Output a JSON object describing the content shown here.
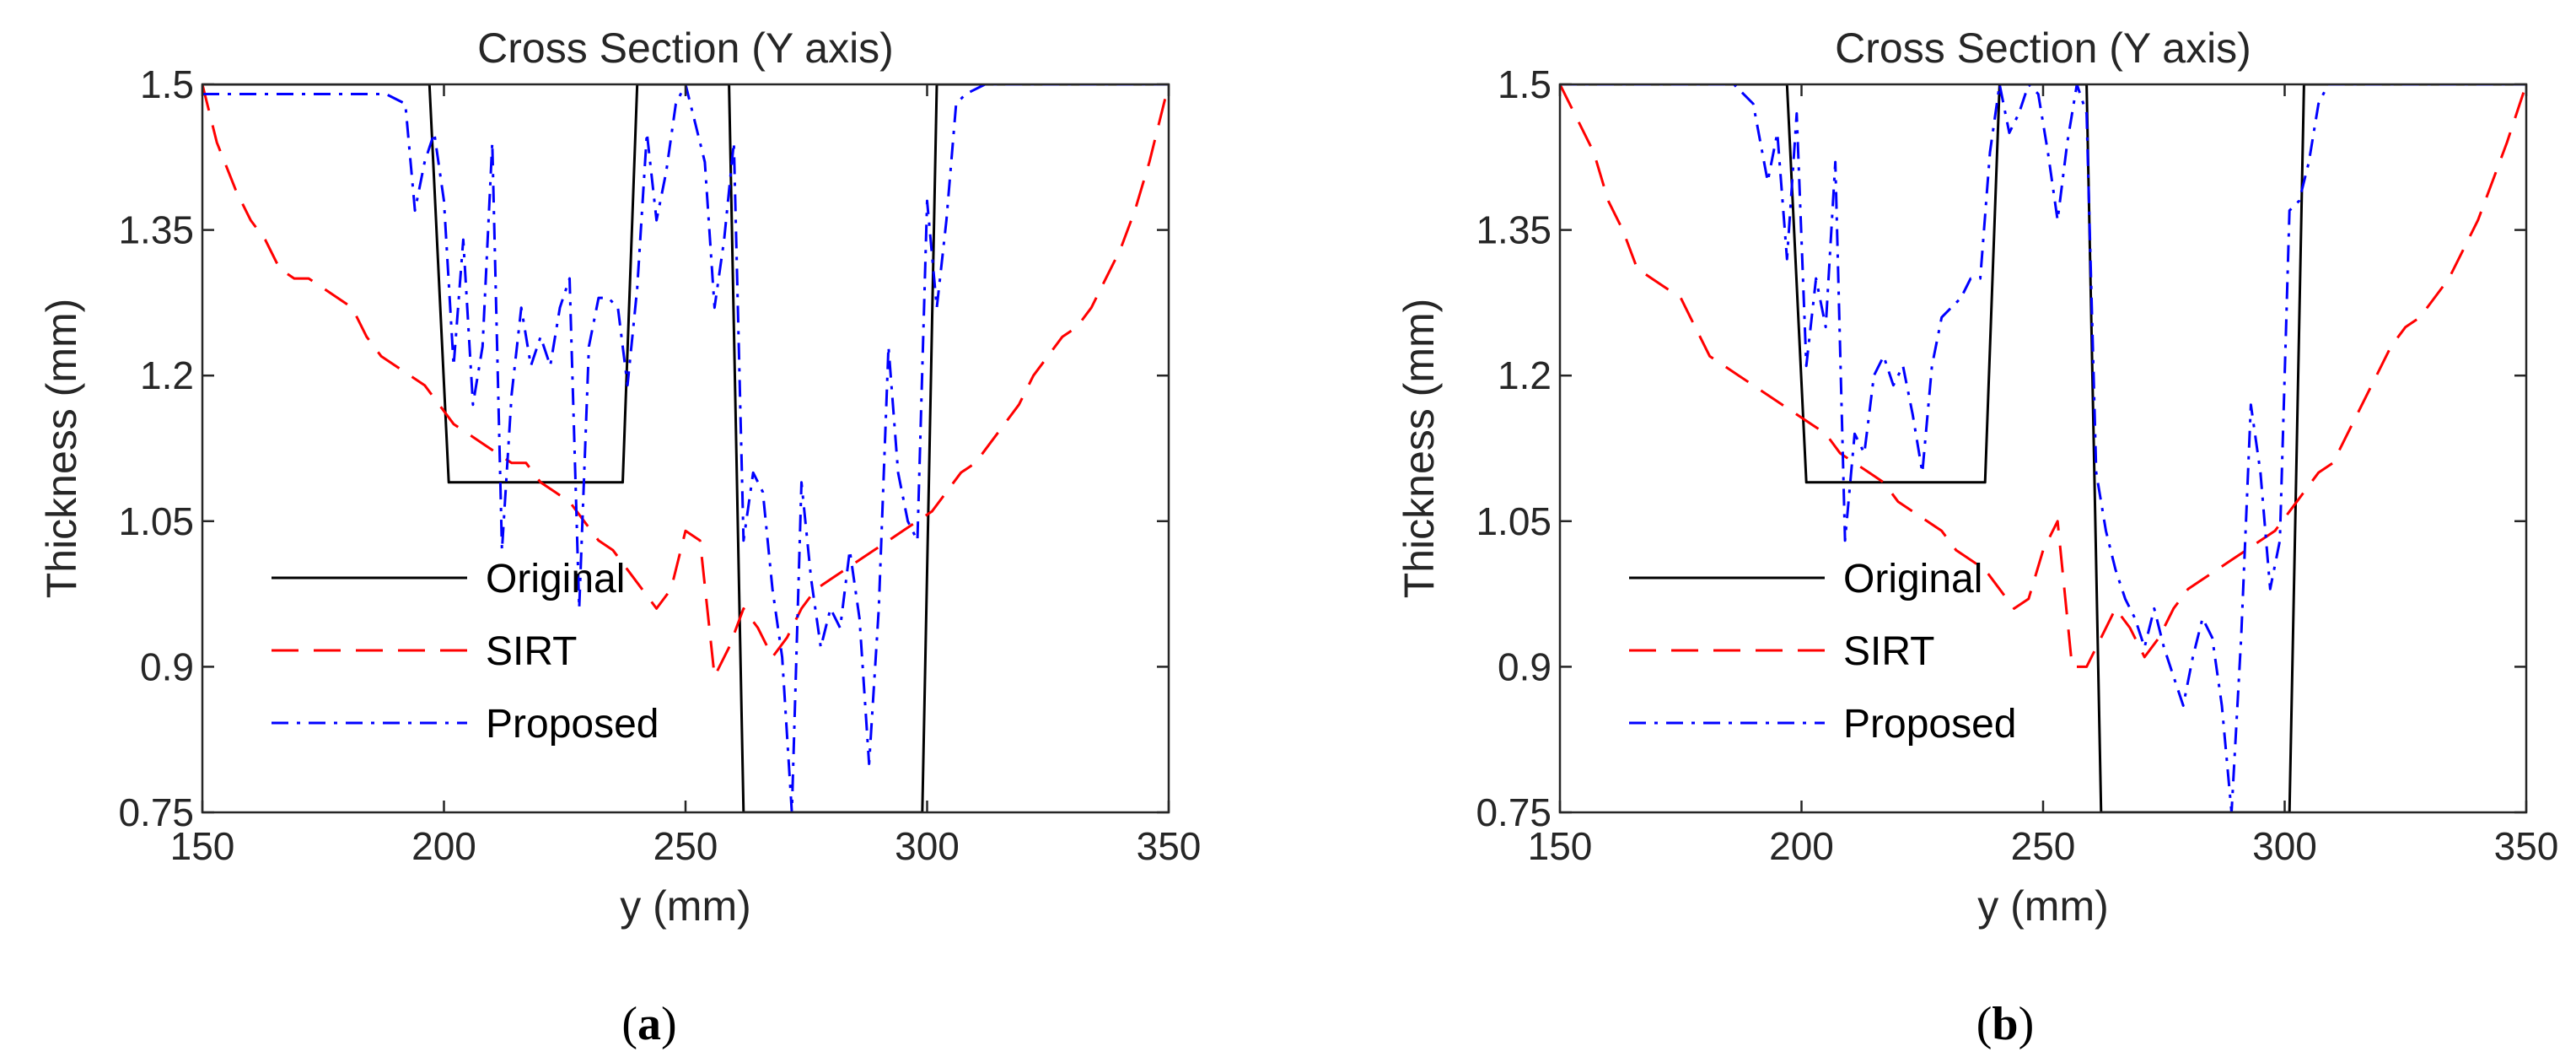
{
  "chart_data": [
    {
      "type": "line",
      "panel": "a",
      "caption_open": "(",
      "caption_letter": "a",
      "caption_close": ")",
      "title": "Cross Section (Y axis)",
      "xlabel": "y (mm)",
      "ylabel": "Thickness (mm)",
      "xlim": [
        150,
        350
      ],
      "ylim": [
        0.75,
        1.5
      ],
      "xticks": [
        "150",
        "200",
        "250",
        "300",
        "350"
      ],
      "yticks": [
        "0.75",
        "0.9",
        "1.05",
        "1.2",
        "1.35",
        "1.5"
      ],
      "legend_position": "lower-left",
      "series": [
        {
          "name": "Original",
          "style": "solid",
          "color": "#000000",
          "x": [
            150,
            197,
            201,
            237,
            240,
            259,
            262,
            299,
            302,
            350
          ],
          "y": [
            1.5,
            1.5,
            1.09,
            1.09,
            1.5,
            1.5,
            0.75,
            0.75,
            1.5,
            1.5
          ]
        },
        {
          "name": "SIRT",
          "style": "dashed",
          "color": "#ff0000",
          "x": [
            150,
            153,
            157,
            160,
            163,
            166,
            169,
            172,
            175,
            178,
            181,
            184,
            187,
            190,
            193,
            196,
            199,
            202,
            205,
            208,
            211,
            214,
            217,
            220,
            223,
            226,
            229,
            232,
            235,
            238,
            241,
            244,
            247,
            250,
            253,
            256,
            259,
            262,
            265,
            268,
            271,
            274,
            277,
            280,
            283,
            286,
            289,
            292,
            295,
            298,
            301,
            304,
            307,
            310,
            313,
            316,
            319,
            322,
            325,
            328,
            331,
            334,
            337,
            340,
            343,
            346,
            350
          ],
          "y": [
            1.5,
            1.44,
            1.39,
            1.36,
            1.34,
            1.31,
            1.3,
            1.3,
            1.29,
            1.28,
            1.27,
            1.24,
            1.22,
            1.21,
            1.2,
            1.19,
            1.17,
            1.15,
            1.14,
            1.13,
            1.12,
            1.11,
            1.11,
            1.09,
            1.08,
            1.07,
            1.05,
            1.03,
            1.02,
            1.0,
            0.98,
            0.96,
            0.98,
            1.04,
            1.03,
            0.89,
            0.92,
            0.96,
            0.94,
            0.91,
            0.93,
            0.96,
            0.98,
            0.99,
            1.0,
            1.01,
            1.02,
            1.03,
            1.04,
            1.05,
            1.06,
            1.08,
            1.1,
            1.11,
            1.13,
            1.15,
            1.17,
            1.2,
            1.22,
            1.24,
            1.25,
            1.27,
            1.3,
            1.33,
            1.37,
            1.42,
            1.5
          ]
        },
        {
          "name": "Proposed",
          "style": "dashdot",
          "color": "#0000ff",
          "x": [
            150,
            160,
            170,
            180,
            188,
            192,
            194,
            196,
            198,
            200,
            202,
            204,
            206,
            208,
            210,
            212,
            214,
            216,
            218,
            220,
            222,
            224,
            226,
            228,
            230,
            232,
            234,
            236,
            238,
            240,
            242,
            244,
            246,
            248,
            250,
            252,
            254,
            256,
            258,
            260,
            262,
            264,
            266,
            268,
            270,
            272,
            274,
            276,
            278,
            280,
            282,
            284,
            286,
            288,
            290,
            292,
            294,
            296,
            298,
            300,
            302,
            304,
            306,
            308,
            312,
            320,
            330,
            340,
            350
          ],
          "y": [
            1.49,
            1.49,
            1.49,
            1.49,
            1.49,
            1.48,
            1.37,
            1.42,
            1.45,
            1.38,
            1.21,
            1.34,
            1.17,
            1.23,
            1.44,
            1.02,
            1.18,
            1.27,
            1.21,
            1.24,
            1.21,
            1.27,
            1.3,
            0.96,
            1.23,
            1.28,
            1.28,
            1.27,
            1.19,
            1.29,
            1.45,
            1.36,
            1.41,
            1.48,
            1.5,
            1.46,
            1.42,
            1.27,
            1.34,
            1.44,
            1.03,
            1.1,
            1.08,
            0.98,
            0.91,
            0.75,
            1.09,
            0.99,
            0.92,
            0.96,
            0.94,
            1.02,
            0.95,
            0.8,
            0.96,
            1.23,
            1.1,
            1.05,
            1.03,
            1.38,
            1.27,
            1.36,
            1.48,
            1.49,
            1.5,
            1.5,
            1.5,
            1.5,
            1.5
          ]
        }
      ]
    },
    {
      "type": "line",
      "panel": "b",
      "caption_open": "(",
      "caption_letter": "b",
      "caption_close": ")",
      "title": "Cross Section (Y axis)",
      "xlabel": "y (mm)",
      "ylabel": "Thickness (mm)",
      "xlim": [
        150,
        350
      ],
      "ylim": [
        0.75,
        1.5
      ],
      "xticks": [
        "150",
        "200",
        "250",
        "300",
        "350"
      ],
      "yticks": [
        "0.75",
        "0.9",
        "1.05",
        "1.2",
        "1.35",
        "1.5"
      ],
      "legend_position": "lower-left",
      "series": [
        {
          "name": "Original",
          "style": "solid",
          "color": "#000000",
          "x": [
            150,
            197,
            201,
            238,
            241,
            259,
            262,
            301,
            304,
            350
          ],
          "y": [
            1.5,
            1.5,
            1.09,
            1.09,
            1.5,
            1.5,
            0.75,
            0.75,
            1.5,
            1.5
          ]
        },
        {
          "name": "SIRT",
          "style": "dashed",
          "color": "#ff0000",
          "x": [
            150,
            153,
            157,
            160,
            163,
            166,
            169,
            172,
            175,
            178,
            181,
            184,
            187,
            190,
            193,
            196,
            199,
            202,
            205,
            208,
            211,
            214,
            217,
            220,
            223,
            226,
            229,
            232,
            235,
            238,
            241,
            244,
            247,
            250,
            253,
            256,
            259,
            262,
            265,
            268,
            271,
            274,
            277,
            280,
            283,
            286,
            289,
            292,
            295,
            298,
            301,
            304,
            307,
            310,
            313,
            316,
            319,
            322,
            325,
            328,
            331,
            334,
            337,
            340,
            343,
            346,
            350
          ],
          "y": [
            1.5,
            1.47,
            1.43,
            1.38,
            1.35,
            1.31,
            1.3,
            1.29,
            1.28,
            1.25,
            1.22,
            1.21,
            1.2,
            1.19,
            1.18,
            1.17,
            1.16,
            1.15,
            1.14,
            1.12,
            1.11,
            1.1,
            1.09,
            1.07,
            1.06,
            1.05,
            1.04,
            1.02,
            1.01,
            1.0,
            0.98,
            0.96,
            0.97,
            1.02,
            1.05,
            0.9,
            0.9,
            0.93,
            0.96,
            0.94,
            0.91,
            0.93,
            0.96,
            0.98,
            0.99,
            1.0,
            1.01,
            1.02,
            1.03,
            1.04,
            1.06,
            1.08,
            1.1,
            1.11,
            1.14,
            1.17,
            1.2,
            1.23,
            1.25,
            1.26,
            1.28,
            1.3,
            1.33,
            1.36,
            1.4,
            1.44,
            1.5
          ]
        },
        {
          "name": "Proposed",
          "style": "dashdot",
          "color": "#0000ff",
          "x": [
            150,
            160,
            170,
            180,
            186,
            190,
            193,
            195,
            197,
            199,
            201,
            203,
            205,
            207,
            209,
            211,
            213,
            215,
            217,
            219,
            221,
            223,
            225,
            227,
            229,
            231,
            233,
            235,
            237,
            239,
            241,
            243,
            245,
            247,
            249,
            251,
            253,
            255,
            257,
            259,
            261,
            263,
            265,
            267,
            269,
            271,
            273,
            275,
            277,
            279,
            281,
            283,
            285,
            287,
            289,
            291,
            293,
            295,
            297,
            299,
            301,
            303,
            305,
            307,
            309,
            313,
            320,
            330,
            340,
            350
          ],
          "y": [
            1.5,
            1.5,
            1.5,
            1.5,
            1.5,
            1.48,
            1.4,
            1.45,
            1.32,
            1.47,
            1.21,
            1.3,
            1.25,
            1.42,
            1.03,
            1.14,
            1.12,
            1.2,
            1.22,
            1.19,
            1.21,
            1.16,
            1.1,
            1.21,
            1.26,
            1.27,
            1.28,
            1.3,
            1.3,
            1.43,
            1.5,
            1.45,
            1.47,
            1.5,
            1.49,
            1.43,
            1.36,
            1.44,
            1.5,
            1.47,
            1.1,
            1.04,
            1.0,
            0.97,
            0.95,
            0.92,
            0.96,
            0.92,
            0.89,
            0.86,
            0.91,
            0.95,
            0.93,
            0.86,
            0.75,
            0.93,
            1.17,
            1.1,
            0.98,
            1.03,
            1.37,
            1.38,
            1.42,
            1.48,
            1.5,
            1.5,
            1.5,
            1.5,
            1.5,
            1.5
          ]
        }
      ]
    }
  ]
}
